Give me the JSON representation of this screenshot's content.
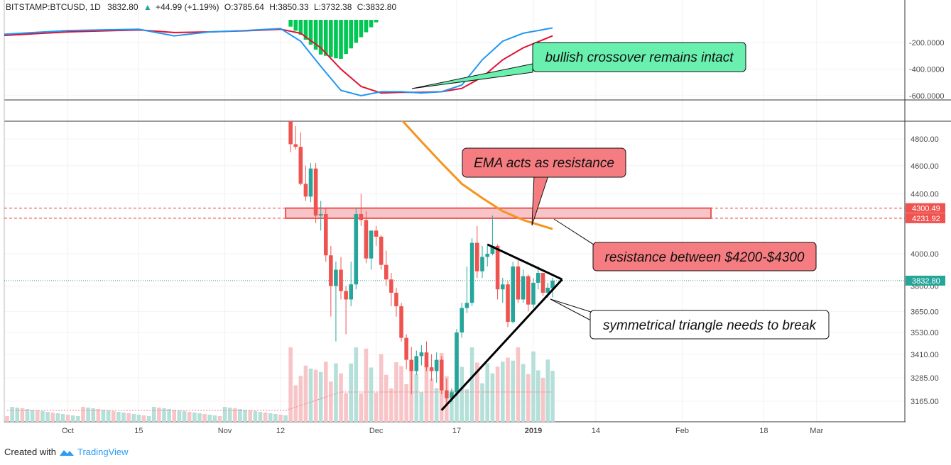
{
  "header": {
    "symbol": "BITSTAMP:BTCUSD, 1D",
    "price": "3832.80",
    "change": "+44.99 (+1.19%)",
    "open_label": "O:",
    "open": "3785.64",
    "high_label": "H:",
    "high": "3850.33",
    "low_label": "L:",
    "low": "3732.38",
    "close_label": "C:",
    "close": "3832.80"
  },
  "colors": {
    "up": "#26a69a",
    "down": "#ef5350",
    "up_vol": "#b5dfd9",
    "down_vol": "#f7c5c7",
    "macd_line": "#2196f3",
    "signal_line": "#e0102f",
    "ema": "#f7931e",
    "hist_green": "#00c853",
    "note_green": "#69f0ae",
    "note_red": "#f57c80",
    "note_white": "#ffffff"
  },
  "indicator_axis": {
    "ticks": [
      "-200.0000",
      "-400.0000",
      "-600.0000"
    ]
  },
  "price_axis": {
    "ticks": [
      "4800.00",
      "4600.00",
      "4400.00",
      "4000.00",
      "3800.00",
      "3650.00",
      "3530.00",
      "3410.00",
      "3285.00",
      "3165.00"
    ],
    "badges": [
      {
        "label": "4300.49",
        "value": 4300.49,
        "kind": "level"
      },
      {
        "label": "4231.92",
        "value": 4231.92,
        "kind": "level"
      },
      {
        "label": "3832.80",
        "value": 3832.8,
        "kind": "last"
      }
    ]
  },
  "time_axis": {
    "labels": [
      "Oct",
      "15",
      "Nov",
      "12",
      "Dec",
      "17",
      "2019",
      "14",
      "Feb",
      "18",
      "Mar"
    ]
  },
  "annotations": {
    "bullish": "bullish crossover remains intact",
    "ema": "EMA acts as resistance",
    "resistance": "resistance between $4200-$4300",
    "triangle": "symmetrical triangle needs to break"
  },
  "footer": {
    "created_with": "Created with",
    "brand": "TradingView"
  },
  "chart_data": {
    "type": "candlestick",
    "symbol": "BITSTAMP:BTCUSD",
    "interval": "1D",
    "price_range": [
      3080,
      4950
    ],
    "resistance_zone": [
      4231.92,
      4300.49
    ],
    "last_price": 3832.8,
    "candles": [
      {
        "date": "2018-11-14",
        "open": 5880,
        "high": 5900,
        "low": 4700,
        "close": 4760
      },
      {
        "date": "2018-11-15",
        "open": 4760,
        "high": 4900,
        "low": 4720,
        "close": 4740
      },
      {
        "date": "2018-11-16",
        "open": 4740,
        "high": 4850,
        "low": 4460,
        "close": 4470
      },
      {
        "date": "2018-11-17",
        "open": 4470,
        "high": 4600,
        "low": 4350,
        "close": 4380
      },
      {
        "date": "2018-11-18",
        "open": 4380,
        "high": 4620,
        "low": 4340,
        "close": 4580
      },
      {
        "date": "2018-11-19",
        "open": 4580,
        "high": 4620,
        "low": 4200,
        "close": 4250
      },
      {
        "date": "2018-11-20",
        "open": 4250,
        "high": 4350,
        "low": 4150,
        "close": 4260
      },
      {
        "date": "2018-11-21",
        "open": 4260,
        "high": 4300,
        "low": 3950,
        "close": 3990
      },
      {
        "date": "2018-11-22",
        "open": 3990,
        "high": 4050,
        "low": 3620,
        "close": 3800
      },
      {
        "date": "2018-11-23",
        "open": 3800,
        "high": 3950,
        "low": 3480,
        "close": 3900
      },
      {
        "date": "2018-11-24",
        "open": 3900,
        "high": 3980,
        "low": 3720,
        "close": 3770
      },
      {
        "date": "2018-11-25",
        "open": 3770,
        "high": 3800,
        "low": 3520,
        "close": 3720
      },
      {
        "date": "2018-11-26",
        "open": 3720,
        "high": 3950,
        "low": 3680,
        "close": 3810
      },
      {
        "date": "2018-11-27",
        "open": 3810,
        "high": 4300,
        "low": 3780,
        "close": 4260
      },
      {
        "date": "2018-11-28",
        "open": 4260,
        "high": 4400,
        "low": 4180,
        "close": 4220
      },
      {
        "date": "2018-11-29",
        "open": 4220,
        "high": 4280,
        "low": 3940,
        "close": 3970
      },
      {
        "date": "2018-11-30",
        "open": 3970,
        "high": 4150,
        "low": 3900,
        "close": 4150
      },
      {
        "date": "2018-12-01",
        "open": 4150,
        "high": 4180,
        "low": 4050,
        "close": 4110
      },
      {
        "date": "2018-12-02",
        "open": 4110,
        "high": 4120,
        "low": 3900,
        "close": 3930
      },
      {
        "date": "2018-12-03",
        "open": 3930,
        "high": 4020,
        "low": 3800,
        "close": 3840
      },
      {
        "date": "2018-12-04",
        "open": 3840,
        "high": 3880,
        "low": 3680,
        "close": 3760
      },
      {
        "date": "2018-12-05",
        "open": 3760,
        "high": 3790,
        "low": 3620,
        "close": 3680
      },
      {
        "date": "2018-12-06",
        "open": 3680,
        "high": 3700,
        "low": 3480,
        "close": 3500
      },
      {
        "date": "2018-12-07",
        "open": 3500,
        "high": 3520,
        "low": 3330,
        "close": 3380
      },
      {
        "date": "2018-12-08",
        "open": 3380,
        "high": 3450,
        "low": 3200,
        "close": 3320
      },
      {
        "date": "2018-12-09",
        "open": 3320,
        "high": 3430,
        "low": 3300,
        "close": 3400
      },
      {
        "date": "2018-12-10",
        "open": 3400,
        "high": 3460,
        "low": 3350,
        "close": 3420
      },
      {
        "date": "2018-12-11",
        "open": 3420,
        "high": 3480,
        "low": 3320,
        "close": 3340
      },
      {
        "date": "2018-12-12",
        "open": 3340,
        "high": 3410,
        "low": 3270,
        "close": 3320
      },
      {
        "date": "2018-12-13",
        "open": 3320,
        "high": 3420,
        "low": 3260,
        "close": 3380
      },
      {
        "date": "2018-12-14",
        "open": 3380,
        "high": 3400,
        "low": 3200,
        "close": 3220
      },
      {
        "date": "2018-12-15",
        "open": 3220,
        "high": 3280,
        "low": 3150,
        "close": 3180
      },
      {
        "date": "2018-12-16",
        "open": 3180,
        "high": 3230,
        "low": 3160,
        "close": 3210
      },
      {
        "date": "2018-12-17",
        "open": 3210,
        "high": 3550,
        "low": 3190,
        "close": 3530
      },
      {
        "date": "2018-12-18",
        "open": 3530,
        "high": 3700,
        "low": 3500,
        "close": 3670
      },
      {
        "date": "2018-12-19",
        "open": 3670,
        "high": 3920,
        "low": 3640,
        "close": 3700
      },
      {
        "date": "2018-12-20",
        "open": 3700,
        "high": 4100,
        "low": 3680,
        "close": 4070
      },
      {
        "date": "2018-12-21",
        "open": 4070,
        "high": 4180,
        "low": 3850,
        "close": 3890
      },
      {
        "date": "2018-12-22",
        "open": 3890,
        "high": 4050,
        "low": 3850,
        "close": 3980
      },
      {
        "date": "2018-12-23",
        "open": 3980,
        "high": 4050,
        "low": 3920,
        "close": 4000
      },
      {
        "date": "2018-12-24",
        "open": 4000,
        "high": 4250,
        "low": 3990,
        "close": 4050
      },
      {
        "date": "2018-12-25",
        "open": 4050,
        "high": 4060,
        "low": 3720,
        "close": 3780
      },
      {
        "date": "2018-12-26",
        "open": 3780,
        "high": 3850,
        "low": 3700,
        "close": 3810
      },
      {
        "date": "2018-12-27",
        "open": 3810,
        "high": 3830,
        "low": 3560,
        "close": 3590
      },
      {
        "date": "2018-12-28",
        "open": 3590,
        "high": 3950,
        "low": 3580,
        "close": 3920
      },
      {
        "date": "2018-12-29",
        "open": 3920,
        "high": 3960,
        "low": 3700,
        "close": 3720
      },
      {
        "date": "2018-12-30",
        "open": 3720,
        "high": 3900,
        "low": 3700,
        "close": 3860
      },
      {
        "date": "2018-12-31",
        "open": 3860,
        "high": 3870,
        "low": 3650,
        "close": 3690
      },
      {
        "date": "2019-01-01",
        "open": 3690,
        "high": 3850,
        "low": 3670,
        "close": 3820
      },
      {
        "date": "2019-01-02",
        "open": 3820,
        "high": 3920,
        "low": 3780,
        "close": 3880
      },
      {
        "date": "2019-01-03",
        "open": 3880,
        "high": 3880,
        "low": 3740,
        "close": 3760
      },
      {
        "date": "2019-01-04",
        "open": 3760,
        "high": 3820,
        "low": 3730,
        "close": 3790
      },
      {
        "date": "2019-01-05",
        "open": 3785.64,
        "high": 3850.33,
        "low": 3732.38,
        "close": 3832.8
      }
    ],
    "ema": [
      {
        "date": "2018-12-06",
        "value": 4950
      },
      {
        "date": "2018-12-10",
        "value": 4780
      },
      {
        "date": "2018-12-14",
        "value": 4620
      },
      {
        "date": "2018-12-18",
        "value": 4470
      },
      {
        "date": "2018-12-22",
        "value": 4370
      },
      {
        "date": "2018-12-26",
        "value": 4280
      },
      {
        "date": "2018-12-30",
        "value": 4220
      },
      {
        "date": "2019-01-05",
        "value": 4160
      }
    ],
    "triangle": {
      "upper": [
        {
          "date": "2018-12-23",
          "value": 4060
        },
        {
          "date": "2019-01-07",
          "value": 3840
        }
      ],
      "lower": [
        {
          "date": "2018-12-14",
          "value": 3120
        },
        {
          "date": "2019-01-07",
          "value": 3840
        }
      ]
    },
    "macd": [
      {
        "date": "2018-09-17",
        "value": -140
      },
      {
        "date": "2018-10-01",
        "value": -110
      },
      {
        "date": "2018-10-15",
        "value": -100
      },
      {
        "date": "2018-10-22",
        "value": -150
      },
      {
        "date": "2018-10-29",
        "value": -120
      },
      {
        "date": "2018-11-05",
        "value": -110
      },
      {
        "date": "2018-11-12",
        "value": -95
      },
      {
        "date": "2018-11-16",
        "value": -190
      },
      {
        "date": "2018-11-20",
        "value": -380
      },
      {
        "date": "2018-11-24",
        "value": -560
      },
      {
        "date": "2018-11-28",
        "value": -600
      },
      {
        "date": "2018-12-02",
        "value": -570
      },
      {
        "date": "2018-12-06",
        "value": -570
      },
      {
        "date": "2018-12-10",
        "value": -580
      },
      {
        "date": "2018-12-14",
        "value": -570
      },
      {
        "date": "2018-12-18",
        "value": -520
      },
      {
        "date": "2018-12-22",
        "value": -330
      },
      {
        "date": "2018-12-26",
        "value": -190
      },
      {
        "date": "2018-12-30",
        "value": -130
      },
      {
        "date": "2019-01-05",
        "value": -90
      }
    ],
    "signal": [
      {
        "date": "2018-09-17",
        "value": -150
      },
      {
        "date": "2018-10-01",
        "value": -120
      },
      {
        "date": "2018-10-15",
        "value": -105
      },
      {
        "date": "2018-10-22",
        "value": -125
      },
      {
        "date": "2018-10-29",
        "value": -120
      },
      {
        "date": "2018-11-05",
        "value": -112
      },
      {
        "date": "2018-11-12",
        "value": -100
      },
      {
        "date": "2018-11-16",
        "value": -130
      },
      {
        "date": "2018-11-20",
        "value": -240
      },
      {
        "date": "2018-11-24",
        "value": -400
      },
      {
        "date": "2018-11-28",
        "value": -530
      },
      {
        "date": "2018-12-02",
        "value": -580
      },
      {
        "date": "2018-12-06",
        "value": -575
      },
      {
        "date": "2018-12-10",
        "value": -575
      },
      {
        "date": "2018-12-14",
        "value": -570
      },
      {
        "date": "2018-12-18",
        "value": -545
      },
      {
        "date": "2018-12-22",
        "value": -460
      },
      {
        "date": "2018-12-26",
        "value": -330
      },
      {
        "date": "2018-12-30",
        "value": -240
      },
      {
        "date": "2019-01-05",
        "value": -150
      }
    ]
  }
}
